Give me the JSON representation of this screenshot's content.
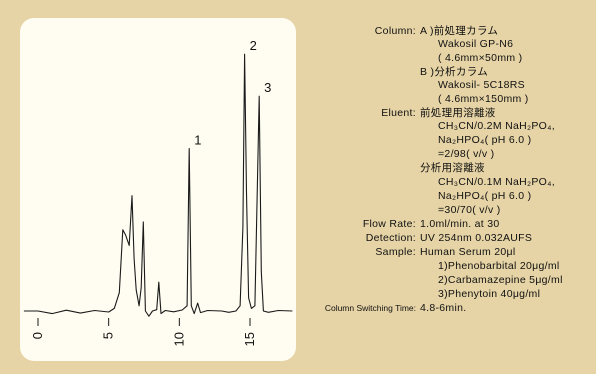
{
  "chart_data": {
    "type": "line",
    "x_ticks": [
      "0",
      "5",
      "10",
      "15"
    ],
    "x_tick_values": [
      0,
      5,
      10,
      15
    ],
    "xlim": [
      -1.5,
      18.5
    ],
    "ylim": [
      0,
      1
    ],
    "series": [
      {
        "points": [
          [
            -1.0,
            0.0
          ],
          [
            0.0,
            0.0
          ],
          [
            1.0,
            -0.01
          ],
          [
            2.0,
            0.003
          ],
          [
            3.0,
            -0.008
          ],
          [
            4.0,
            0.002
          ],
          [
            5.0,
            -0.004
          ],
          [
            5.4,
            0.01
          ],
          [
            5.75,
            0.07
          ],
          [
            6.0,
            0.31
          ],
          [
            6.2,
            0.29
          ],
          [
            6.45,
            0.25
          ],
          [
            6.65,
            0.44
          ],
          [
            6.8,
            0.2
          ],
          [
            6.95,
            0.08
          ],
          [
            7.15,
            0.02
          ],
          [
            7.3,
            0.09
          ],
          [
            7.45,
            0.34
          ],
          [
            7.6,
            0.0
          ],
          [
            7.85,
            -0.02
          ],
          [
            8.1,
            0.0
          ],
          [
            8.4,
            0.005
          ],
          [
            8.55,
            0.11
          ],
          [
            8.7,
            -0.01
          ],
          [
            9.0,
            0.002
          ],
          [
            9.6,
            -0.003
          ],
          [
            10.2,
            0.004
          ],
          [
            10.55,
            0.02
          ],
          [
            10.7,
            0.62
          ],
          [
            10.85,
            0.02
          ],
          [
            11.05,
            -0.01
          ],
          [
            11.3,
            0.03
          ],
          [
            11.5,
            -0.006
          ],
          [
            12.0,
            0.002
          ],
          [
            13.0,
            0.0
          ],
          [
            13.5,
            -0.005
          ],
          [
            14.0,
            0.0
          ],
          [
            14.3,
            0.02
          ],
          [
            14.5,
            0.32
          ],
          [
            14.62,
            0.98
          ],
          [
            14.75,
            0.45
          ],
          [
            14.9,
            0.05
          ],
          [
            15.1,
            0.01
          ],
          [
            15.35,
            0.02
          ],
          [
            15.65,
            0.82
          ],
          [
            15.8,
            0.15
          ],
          [
            15.95,
            0.0
          ],
          [
            16.3,
            -0.005
          ],
          [
            17.0,
            0.002
          ],
          [
            18.0,
            0.0
          ]
        ]
      }
    ],
    "peaks": [
      {
        "label": "1",
        "x": 10.7,
        "y": 0.62
      },
      {
        "label": "2",
        "x": 14.62,
        "y": 0.98
      },
      {
        "label": "3",
        "x": 15.65,
        "y": 0.82
      }
    ]
  },
  "conditions": {
    "column_label": "Column:",
    "column_a": "A )前処理カラム",
    "column_a_name": "Wakosil GP-N6",
    "column_a_size": "( 4.6mm×50mm )",
    "column_b": "B )分析カラム",
    "column_b_name": "Wakosil-   5C18RS",
    "column_b_size": "( 4.6mm×150mm )",
    "eluent_label": "Eluent:",
    "eluent_a": "前処理用溶離液",
    "eluent_a_line1": "CH₃CN/0.2M NaH₂PO₄,",
    "eluent_a_line2": "Na₂HPO₄( pH 6.0 )",
    "eluent_a_ratio": "=2/98( v/v )",
    "eluent_b": "分析用溶離液",
    "eluent_b_line1": "CH₃CN/0.1M NaH₂PO₄,",
    "eluent_b_line2": "Na₂HPO₄( pH 6.0 )",
    "eluent_b_ratio": "=30/70( v/v )",
    "flow_label": "Flow Rate:",
    "flow_value": "1.0ml/min. at 30",
    "detection_label": "Detection:",
    "detection_value": "UV 254nm 0.032AUFS",
    "sample_label": "Sample:",
    "sample_value": "Human Serum 20μl",
    "sample_1": "1)Phenobarbital 20μg/ml",
    "sample_2": "2)Carbamazepine 5μg/ml",
    "sample_3": "3)Phenytoin 40μg/ml",
    "switch_label": "Column Switching Time:",
    "switch_value": "4.8-6min."
  }
}
